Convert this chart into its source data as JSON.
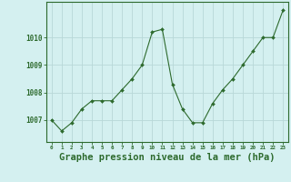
{
  "x": [
    0,
    1,
    2,
    3,
    4,
    5,
    6,
    7,
    8,
    9,
    10,
    11,
    12,
    13,
    14,
    15,
    16,
    17,
    18,
    19,
    20,
    21,
    22,
    23
  ],
  "y": [
    1007.0,
    1006.6,
    1006.9,
    1007.4,
    1007.7,
    1007.7,
    1007.7,
    1008.1,
    1008.5,
    1009.0,
    1010.2,
    1010.3,
    1008.3,
    1007.4,
    1006.9,
    1006.9,
    1007.6,
    1008.1,
    1008.5,
    1009.0,
    1009.5,
    1010.0,
    1010.0,
    1011.0
  ],
  "line_color": "#2d6a2d",
  "marker": "D",
  "marker_size": 2.0,
  "bg_color": "#d4f0f0",
  "grid_color": "#b8d8d8",
  "xlabel": "Graphe pression niveau de la mer (hPa)",
  "xlabel_fontsize": 7.5,
  "ylabel_ticks": [
    1007,
    1008,
    1009,
    1010
  ],
  "ylim": [
    1006.2,
    1011.3
  ],
  "xlim": [
    -0.5,
    23.5
  ],
  "xticks": [
    0,
    1,
    2,
    3,
    4,
    5,
    6,
    7,
    8,
    9,
    10,
    11,
    12,
    13,
    14,
    15,
    16,
    17,
    18,
    19,
    20,
    21,
    22,
    23
  ],
  "tick_color": "#2d6a2d",
  "border_color": "#2d6a2d"
}
